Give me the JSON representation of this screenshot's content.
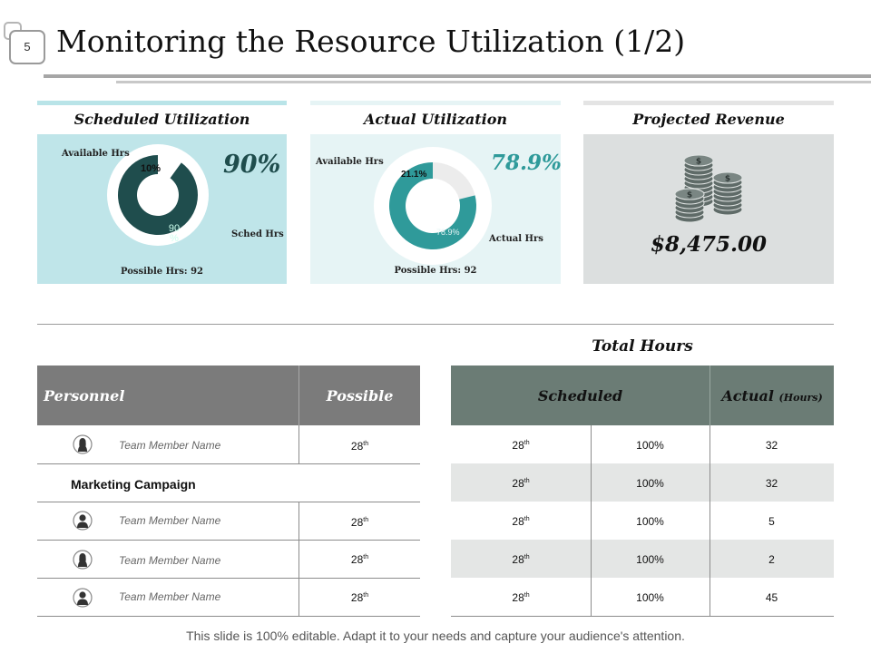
{
  "slide_number": "5",
  "title": "Monitoring the Resource Utilization (1/2)",
  "cards": {
    "scheduled": {
      "heading": "Scheduled Utilization",
      "percent": "90%",
      "available_label": "Available Hrs",
      "available_pct": "10%",
      "sched_pct": "90 %",
      "sched_label": "Sched Hrs",
      "possible_label": "Possible Hrs: 92",
      "color": "#1f4d4d"
    },
    "actual": {
      "heading": "Actual Utilization",
      "percent": "78.9%",
      "available_label": "Available Hrs",
      "available_pct": "21.1%",
      "actual_pct": "78.9%",
      "actual_label": "Actual Hrs",
      "possible_label": "Possible Hrs:  92",
      "color": "#2f9a9a"
    },
    "revenue": {
      "heading": "Projected Revenue",
      "amount": "$8,475.00"
    }
  },
  "chart_data": [
    {
      "type": "pie",
      "title": "Scheduled Utilization",
      "categories": [
        "Available Hrs",
        "Sched Hrs"
      ],
      "values": [
        10,
        90
      ]
    },
    {
      "type": "pie",
      "title": "Actual Utilization",
      "categories": [
        "Available Hrs",
        "Actual Hrs"
      ],
      "values": [
        21.1,
        78.9
      ]
    }
  ],
  "total_hours_label": "Total Hours",
  "left_table": {
    "headers": {
      "personnel": "Personnel",
      "possible": "Possible"
    },
    "section_label": "Marketing Campaign",
    "rows": [
      {
        "name": "Team Member Name",
        "possible": "28",
        "sup": "th",
        "avatar": "female-avatar-icon"
      },
      {
        "name": "Team Member Name",
        "possible": "28",
        "sup": "th",
        "avatar": "male-avatar-icon"
      },
      {
        "name": "Team Member Name",
        "possible": "28",
        "sup": "th",
        "avatar": "female-avatar-icon"
      },
      {
        "name": "Team Member Name",
        "possible": "28",
        "sup": "th",
        "avatar": "male-avatar-icon"
      }
    ]
  },
  "right_table": {
    "headers": {
      "scheduled": "Scheduled",
      "actual": "Actual",
      "actual_unit": "(Hours)"
    },
    "rows": [
      {
        "sched": "28",
        "sup": "th",
        "pct": "100%",
        "actual": "32"
      },
      {
        "sched": "28",
        "sup": "th",
        "pct": "100%",
        "actual": "32"
      },
      {
        "sched": "28",
        "sup": "th",
        "pct": "100%",
        "actual": "5"
      },
      {
        "sched": "28",
        "sup": "th",
        "pct": "100%",
        "actual": "2"
      },
      {
        "sched": "28",
        "sup": "th",
        "pct": "100%",
        "actual": "45"
      }
    ]
  },
  "footer": "This slide is 100% editable. Adapt it to your needs and capture your audience's attention."
}
